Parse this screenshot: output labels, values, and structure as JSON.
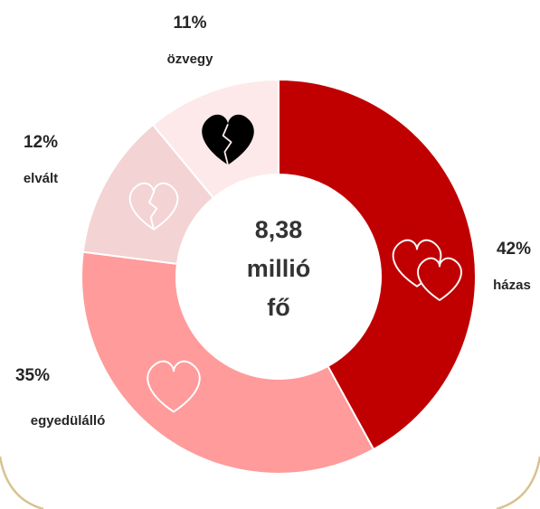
{
  "chart_data": {
    "type": "donut",
    "categories": [
      "házas",
      "egyedülálló",
      "elvált",
      "özvegy"
    ],
    "values": [
      42,
      35,
      12,
      11
    ],
    "value_labels": [
      "42%",
      "35%",
      "12%",
      "11%"
    ],
    "colors": [
      "#c00000",
      "#ff9b9b",
      "#f3d3d3",
      "#fde9e9"
    ],
    "center_text": [
      "8,38",
      "millió",
      "fő"
    ]
  }
}
